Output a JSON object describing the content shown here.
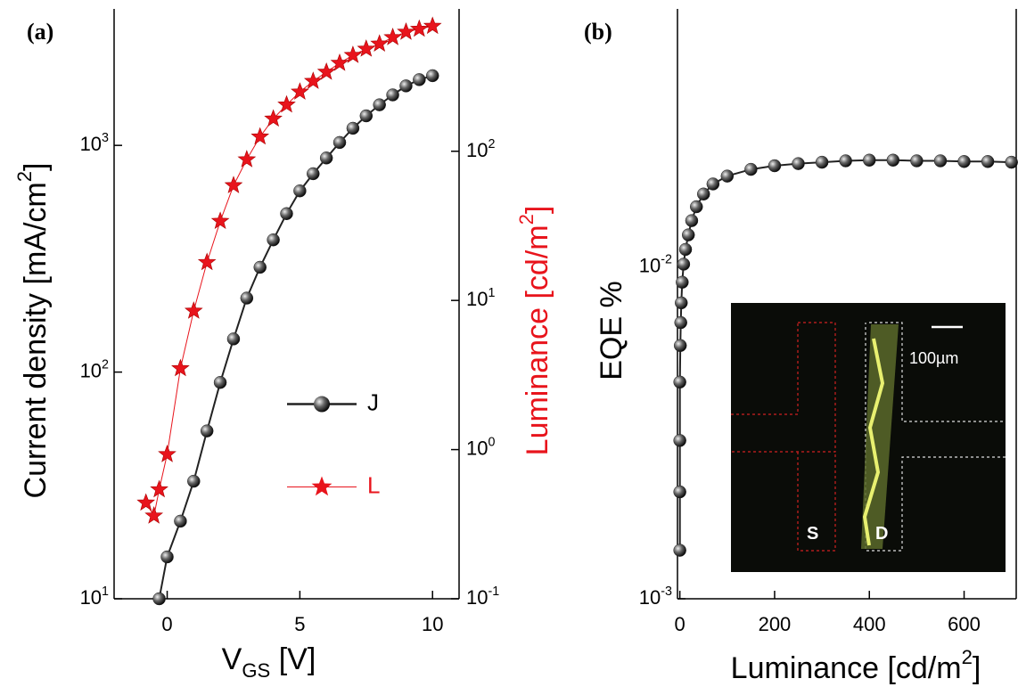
{
  "chart_data": [
    {
      "type": "line",
      "panel_label": "(a)",
      "xlabel": "V_GS  [V]",
      "ylabel": "Current density [mA/cm^2]",
      "y2label": "Luminance [cd/m^2]",
      "y2label_color": "#e8141c",
      "xlim": [
        -2,
        11
      ],
      "xticks": [
        0,
        5,
        10
      ],
      "ylim": [
        10,
        4000
      ],
      "ylog": true,
      "yticks": [
        {
          "value": 10,
          "label": "10^1"
        },
        {
          "value": 100,
          "label": "10^2"
        },
        {
          "value": 1000,
          "label": "10^3"
        }
      ],
      "y2lim": [
        0.1,
        900
      ],
      "y2log": true,
      "y2ticks": [
        {
          "value": 0.1,
          "label": "10^-1"
        },
        {
          "value": 1,
          "label": "10^0"
        },
        {
          "value": 10,
          "label": "10^1"
        },
        {
          "value": 100,
          "label": "10^2"
        }
      ],
      "legend": "center right",
      "series": [
        {
          "name": "J",
          "color": "#222222",
          "marker": "sphere",
          "x": [
            -0.3,
            0,
            0.5,
            1,
            1.5,
            2,
            2.5,
            3,
            3.5,
            4,
            4.5,
            5,
            5.5,
            6,
            6.5,
            7,
            7.5,
            8,
            8.5,
            9,
            9.5,
            10
          ],
          "values": [
            10,
            15.3,
            22,
            33,
            55,
            90,
            140,
            212,
            290,
            383,
            500,
            630,
            750,
            880,
            1030,
            1190,
            1350,
            1510,
            1670,
            1830,
            1950,
            2030
          ]
        },
        {
          "name": "L",
          "color": "#e8141c",
          "marker": "star",
          "axis": "y2",
          "x": [
            -0.8,
            -0.5,
            -0.3,
            0,
            0.5,
            1,
            1.5,
            2,
            2.5,
            3,
            3.5,
            4,
            4.5,
            5,
            5.5,
            6,
            6.5,
            7,
            7.5,
            8,
            8.5,
            9,
            9.5,
            10
          ],
          "values": [
            0.44,
            0.36,
            0.54,
            0.93,
            3.5,
            8.5,
            18,
            34,
            59,
            88,
            125,
            165,
            205,
            250,
            295,
            340,
            390,
            440,
            485,
            525,
            580,
            630,
            660,
            690
          ]
        }
      ]
    },
    {
      "type": "line",
      "panel_label": "(b)",
      "xlabel": "Luminance [cd/m^2]",
      "ylabel": "EQE %",
      "xlim": [
        -5,
        710
      ],
      "xticks": [
        0,
        200,
        400,
        600
      ],
      "ylim": [
        0.001,
        0.06
      ],
      "ylog": true,
      "yticks": [
        {
          "value": 0.001,
          "label": "10^-3"
        },
        {
          "value": 0.01,
          "label": "10^-2"
        }
      ],
      "inset_labels": [
        "S",
        "D",
        "100µm"
      ],
      "series": [
        {
          "color": "#222222",
          "marker": "sphere",
          "x": [
            0,
            0,
            0,
            0,
            1,
            2,
            3,
            5,
            8,
            12,
            18,
            25,
            35,
            50,
            70,
            100,
            150,
            200,
            250,
            300,
            350,
            400,
            450,
            500,
            550,
            600,
            650,
            700
          ],
          "values": [
            0.0014,
            0.0021,
            0.003,
            0.0045,
            0.0058,
            0.0068,
            0.0078,
            0.009,
            0.0102,
            0.0113,
            0.0125,
            0.0138,
            0.0152,
            0.0166,
            0.0178,
            0.0188,
            0.0197,
            0.0202,
            0.0205,
            0.0207,
            0.0209,
            0.021,
            0.021,
            0.0209,
            0.0209,
            0.0208,
            0.0208,
            0.0207
          ]
        }
      ]
    }
  ]
}
